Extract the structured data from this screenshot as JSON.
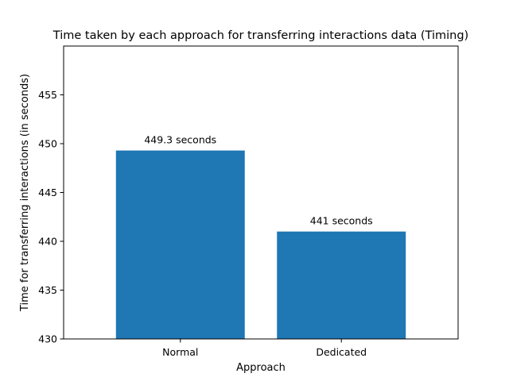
{
  "chart_data": {
    "type": "bar",
    "title": "Time taken by each approach for transferring interactions data (Timing)",
    "xlabel": "Approach",
    "ylabel": "Time for transferring interactions (in seconds)",
    "categories": [
      "Normal",
      "Dedicated"
    ],
    "values": [
      449.3,
      441
    ],
    "data_labels": [
      "449.3 seconds",
      "441 seconds"
    ],
    "ylim": [
      430,
      460
    ],
    "yticks": [
      430,
      435,
      440,
      445,
      450,
      455
    ],
    "bar_color": "#1f77b4",
    "grid": false,
    "legend": "none"
  }
}
